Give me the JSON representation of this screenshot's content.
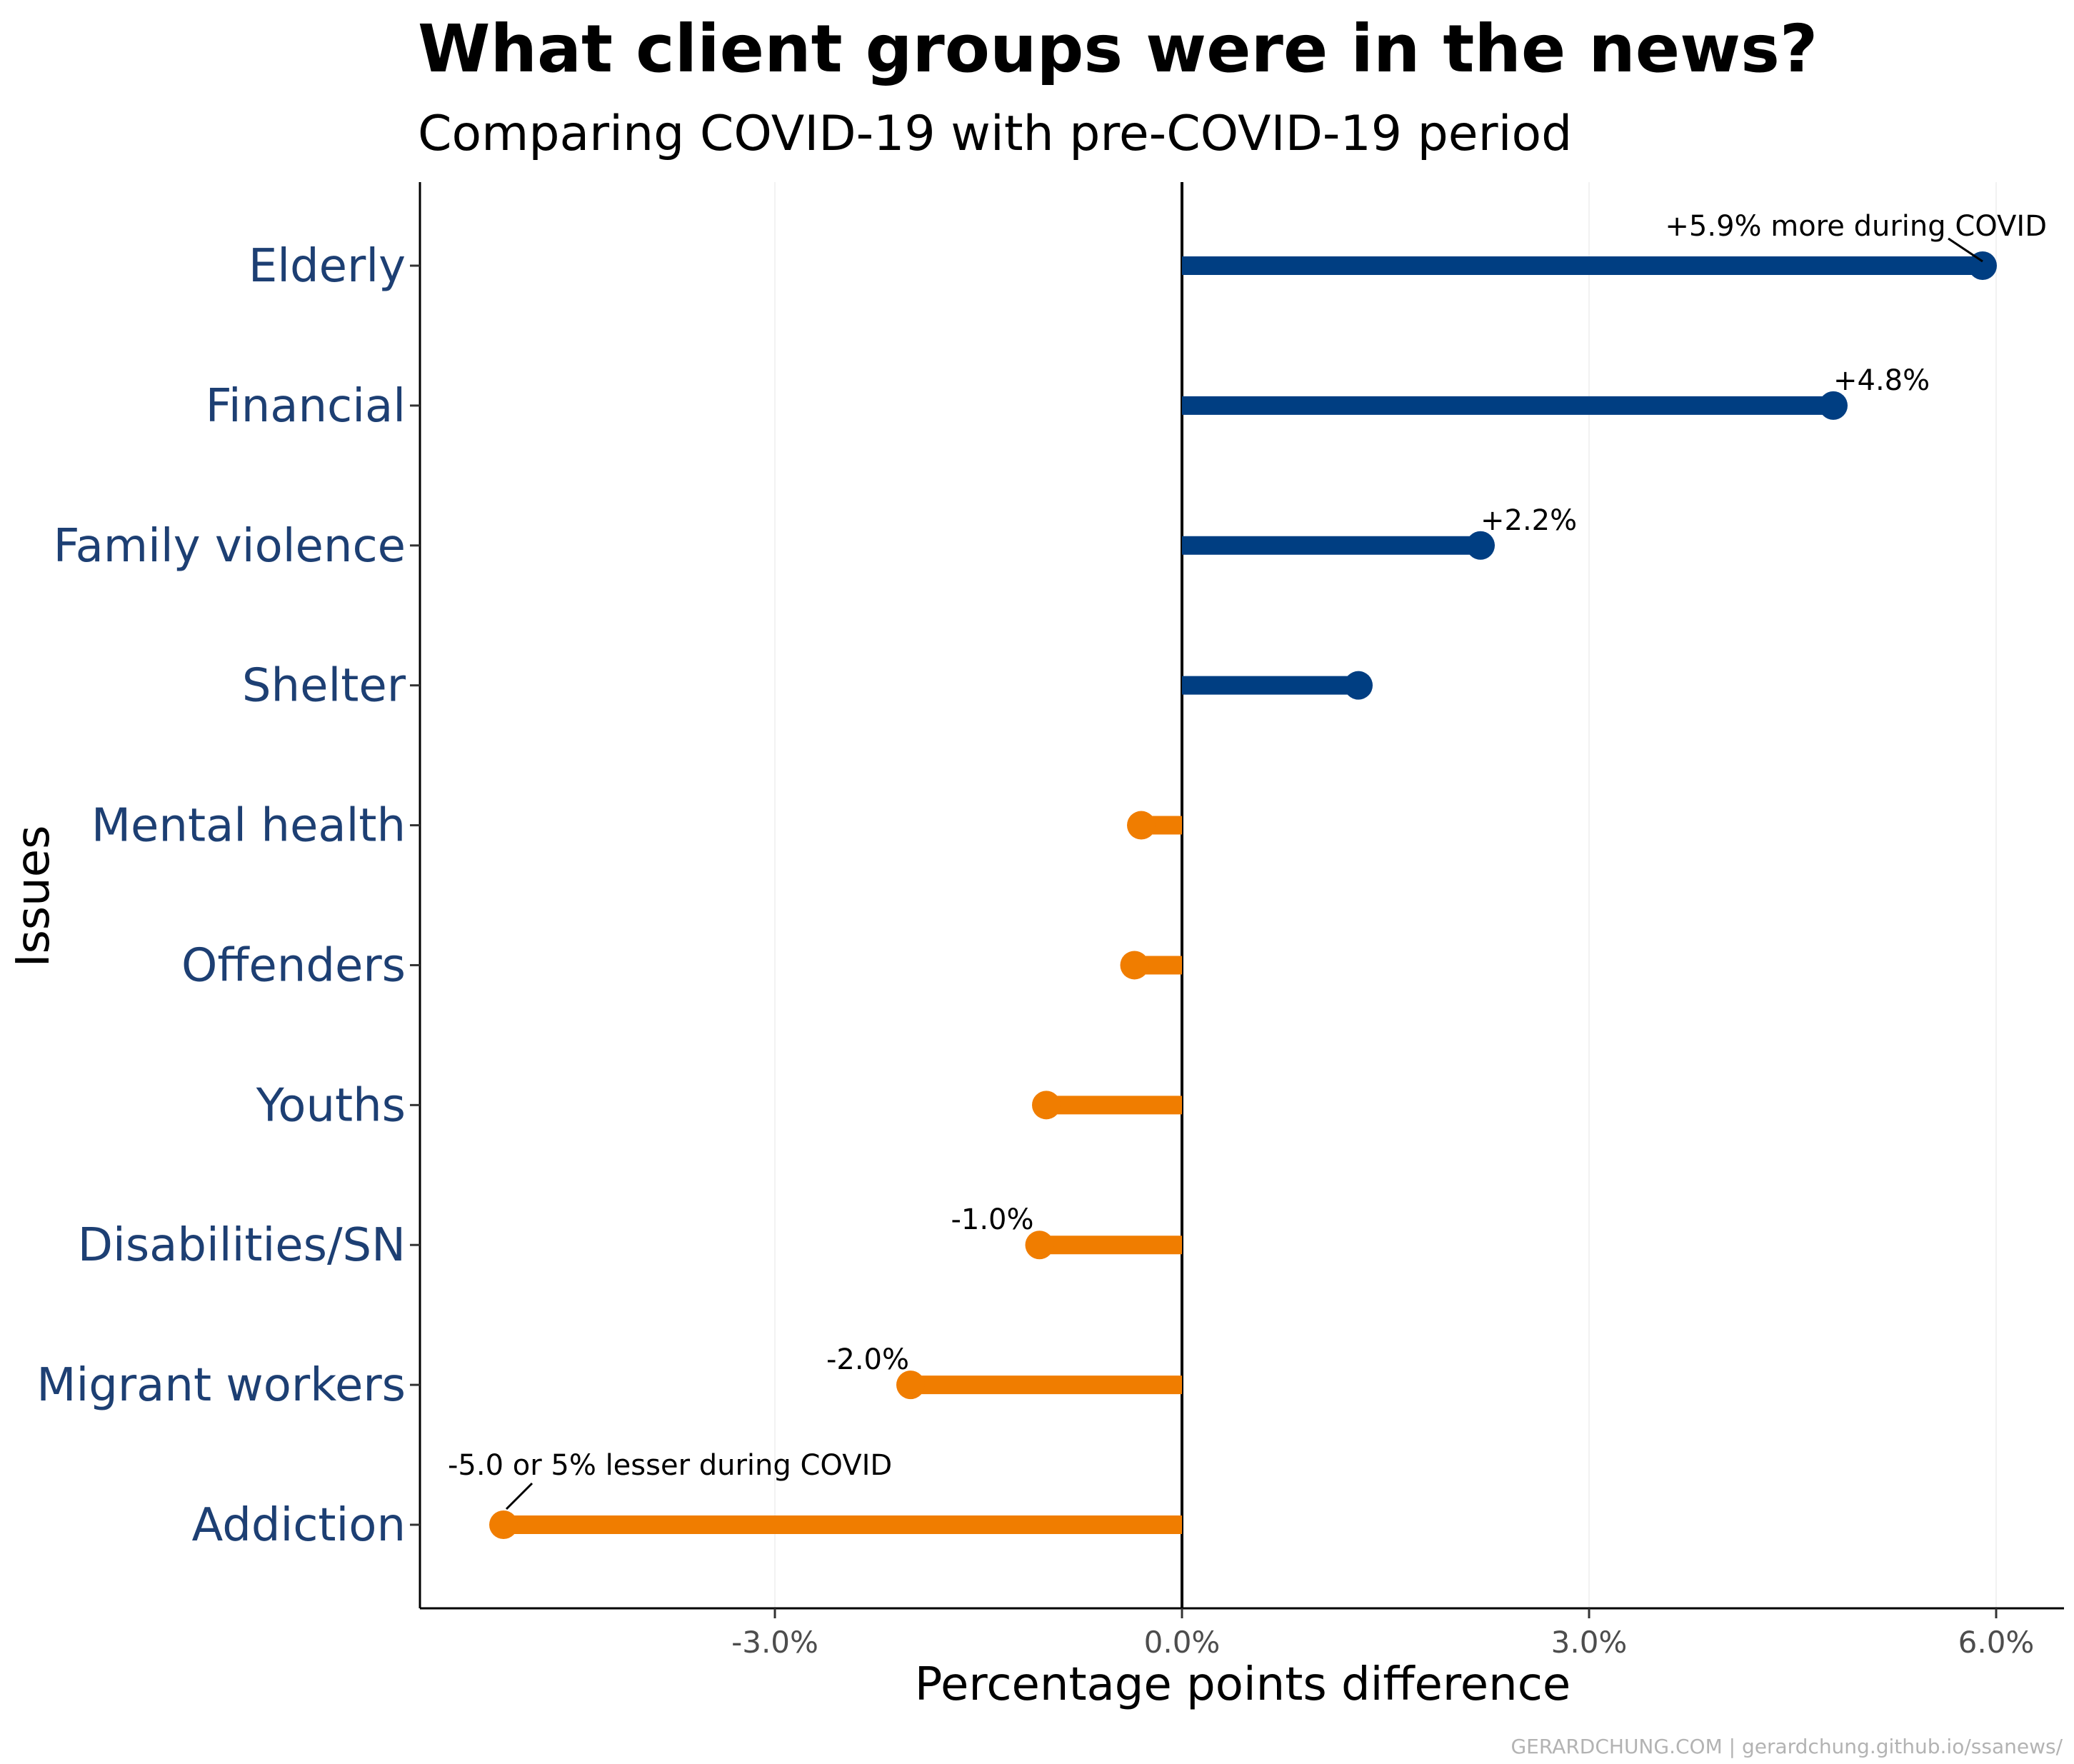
{
  "chart_data": {
    "type": "lollipop",
    "title": "What client groups were in the news?",
    "subtitle": "Comparing COVID-19 with pre-COVID-19 period",
    "xlabel": "Percentage points difference",
    "ylabel": "Issues",
    "xlim": [
      -5.6,
      6.4
    ],
    "x_ticks": [
      -3,
      0,
      3,
      6
    ],
    "x_tick_labels": [
      "-3.0%",
      "0.0%",
      "3.0%",
      "6.0%"
    ],
    "categories": [
      "Elderly",
      "Financial",
      "Family violence",
      "Shelter",
      "Mental health",
      "Offenders",
      "Youths",
      "Disabilities/SN",
      "Migrant workers",
      "Addiction"
    ],
    "values": [
      5.9,
      4.8,
      2.2,
      1.3,
      -0.3,
      -0.35,
      -1.0,
      -1.05,
      -2.0,
      -5.0
    ],
    "positive_color": "#003e82",
    "negative_color": "#f07d00",
    "annotations": [
      {
        "category": "Elderly",
        "text": "+5.9% more during COVID"
      },
      {
        "category": "Financial",
        "text": "+4.8%"
      },
      {
        "category": "Family violence",
        "text": "+2.2%"
      },
      {
        "category": "Disabilities/SN",
        "text": "-1.0%"
      },
      {
        "category": "Migrant workers",
        "text": "-2.0%"
      },
      {
        "category": "Addiction",
        "text": "-5.0 or 5% lesser during COVID"
      }
    ],
    "grid": "off",
    "legend": "none"
  },
  "caption": "GERARDCHUNG.COM  |  gerardchung.github.io/ssanews/"
}
